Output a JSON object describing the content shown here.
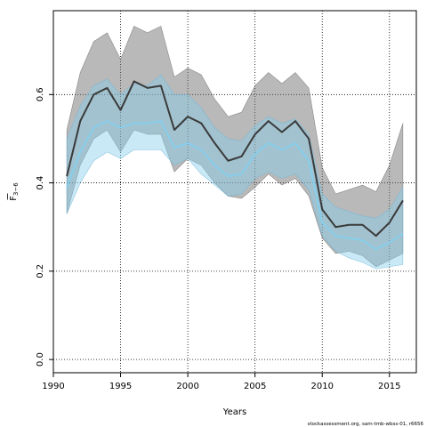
{
  "chart_data": {
    "type": "line",
    "xlabel": "Years",
    "ylabel": "F̅₃₋₆",
    "ylabel_main": "F",
    "ylabel_sub": "3−6",
    "xlim": [
      1990,
      2017
    ],
    "ylim": [
      -0.03,
      0.79
    ],
    "xticks": [
      1990,
      1995,
      2000,
      2005,
      2010,
      2015
    ],
    "yticks": [
      0.0,
      0.2,
      0.4,
      0.6
    ],
    "ytick_labels": [
      "0.0",
      "0.2",
      "0.4",
      "0.6"
    ],
    "grid": true,
    "x": [
      1991,
      1992,
      1993,
      1994,
      1995,
      1996,
      1997,
      1998,
      1999,
      2000,
      2001,
      2002,
      2003,
      2004,
      2005,
      2006,
      2007,
      2008,
      2009,
      2010,
      2011,
      2012,
      2013,
      2014,
      2015,
      2016
    ],
    "series": [
      {
        "role": "estimate_dark",
        "color": "#3a3a3a",
        "values": [
          0.415,
          0.54,
          0.6,
          0.615,
          0.565,
          0.63,
          0.615,
          0.62,
          0.52,
          0.55,
          0.535,
          0.49,
          0.45,
          0.46,
          0.51,
          0.54,
          0.515,
          0.54,
          0.5,
          0.34,
          0.3,
          0.305,
          0.305,
          0.28,
          0.31,
          0.36
        ],
        "lower": [
          0.33,
          0.44,
          0.5,
          0.52,
          0.47,
          0.52,
          0.51,
          0.51,
          0.425,
          0.455,
          0.44,
          0.4,
          0.37,
          0.365,
          0.39,
          0.42,
          0.395,
          0.41,
          0.37,
          0.275,
          0.24,
          0.245,
          0.235,
          0.21,
          0.225,
          0.24
        ],
        "upper": [
          0.52,
          0.65,
          0.72,
          0.74,
          0.68,
          0.755,
          0.74,
          0.755,
          0.64,
          0.66,
          0.645,
          0.59,
          0.55,
          0.56,
          0.62,
          0.65,
          0.625,
          0.65,
          0.615,
          0.435,
          0.375,
          0.385,
          0.395,
          0.38,
          0.44,
          0.535
        ]
      },
      {
        "role": "estimate_light",
        "color": "#87ceeb",
        "values": [
          0.39,
          0.47,
          0.525,
          0.54,
          0.525,
          0.535,
          0.535,
          0.54,
          0.48,
          0.49,
          0.475,
          0.44,
          0.415,
          0.42,
          0.465,
          0.49,
          0.475,
          0.49,
          0.45,
          0.31,
          0.28,
          0.275,
          0.27,
          0.25,
          0.265,
          0.285
        ],
        "lower": [
          0.33,
          0.4,
          0.45,
          0.47,
          0.455,
          0.475,
          0.475,
          0.475,
          0.44,
          0.455,
          0.42,
          0.395,
          0.37,
          0.375,
          0.41,
          0.425,
          0.41,
          0.42,
          0.385,
          0.28,
          0.245,
          0.23,
          0.22,
          0.205,
          0.21,
          0.215
        ],
        "upper": [
          0.5,
          0.575,
          0.62,
          0.635,
          0.6,
          0.625,
          0.62,
          0.645,
          0.6,
          0.6,
          0.57,
          0.525,
          0.5,
          0.495,
          0.53,
          0.55,
          0.535,
          0.545,
          0.51,
          0.375,
          0.345,
          0.335,
          0.325,
          0.32,
          0.34,
          0.39
        ]
      }
    ]
  },
  "footer_text": "stockassessment.org, sam-tmb-wbss-01, r6656"
}
